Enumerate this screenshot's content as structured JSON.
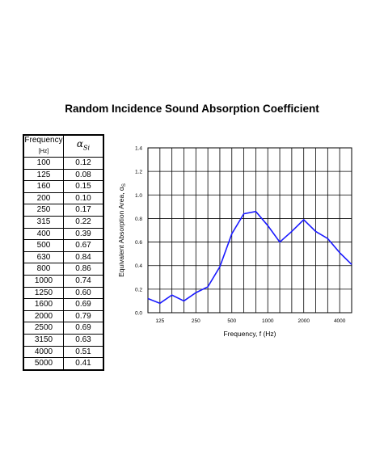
{
  "title": "Random Incidence Sound Absorption Coefficient",
  "table": {
    "header_frequency": "Frequency",
    "header_unit": "[Hz]",
    "header_alpha": "α",
    "header_alpha_sub": "Si",
    "rows": [
      {
        "f": "100",
        "a": "0.12"
      },
      {
        "f": "125",
        "a": "0.08"
      },
      {
        "f": "160",
        "a": "0.15"
      },
      {
        "f": "200",
        "a": "0.10"
      },
      {
        "f": "250",
        "a": "0.17"
      },
      {
        "f": "315",
        "a": "0.22"
      },
      {
        "f": "400",
        "a": "0.39"
      },
      {
        "f": "500",
        "a": "0.67"
      },
      {
        "f": "630",
        "a": "0.84"
      },
      {
        "f": "800",
        "a": "0.86"
      },
      {
        "f": "1000",
        "a": "0.74"
      },
      {
        "f": "1250",
        "a": "0.60"
      },
      {
        "f": "1600",
        "a": "0.69"
      },
      {
        "f": "2000",
        "a": "0.79"
      },
      {
        "f": "2500",
        "a": "0.69"
      },
      {
        "f": "3150",
        "a": "0.63"
      },
      {
        "f": "4000",
        "a": "0.51"
      },
      {
        "f": "5000",
        "a": "0.41"
      }
    ]
  },
  "chart_data": {
    "type": "line",
    "title": "",
    "ylabel": "Equivalent Absorption Area, α",
    "ylabel_sub": "S",
    "xlabel": "Frequency, f (Hz)",
    "x": [
      "100",
      "125",
      "160",
      "200",
      "250",
      "315",
      "400",
      "500",
      "630",
      "800",
      "1000",
      "1250",
      "1600",
      "2000",
      "2500",
      "3150",
      "4000",
      "5000"
    ],
    "y": [
      0.12,
      0.08,
      0.15,
      0.1,
      0.17,
      0.22,
      0.39,
      0.67,
      0.84,
      0.86,
      0.74,
      0.6,
      0.69,
      0.79,
      0.69,
      0.63,
      0.51,
      0.41
    ],
    "ylim": [
      0,
      1.4
    ],
    "yticks": [
      "0.0",
      "0.2",
      "0.4",
      "0.6",
      "0.8",
      "1.0",
      "1.2",
      "1.4"
    ],
    "xtick_labels": [
      {
        "at": "125",
        "label": "125"
      },
      {
        "at": "250",
        "label": "250"
      },
      {
        "at": "500",
        "label": "500"
      },
      {
        "at": "1000",
        "label": "1000"
      },
      {
        "at": "2000",
        "label": "2000"
      },
      {
        "at": "4000",
        "label": "4000"
      }
    ],
    "line_color": "#1a1aff",
    "grid": true
  }
}
